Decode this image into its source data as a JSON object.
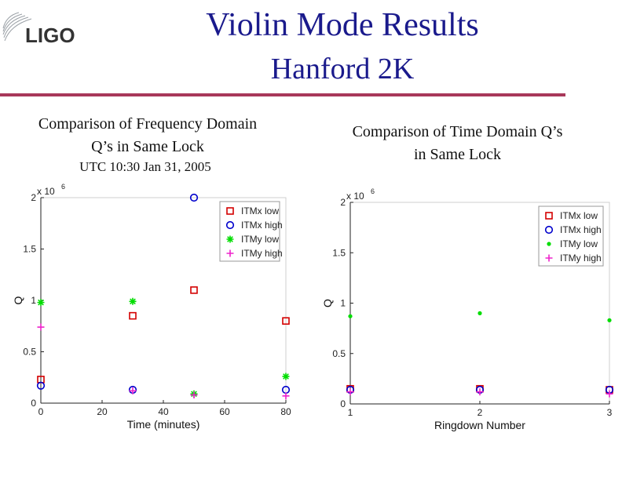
{
  "header": {
    "logo_text": "LIGO",
    "title": "Violin Mode Results",
    "subtitle": "Hanford 2K"
  },
  "captions": {
    "left_line1": "Comparison of Frequency Domain",
    "left_line2": "Q’s in Same Lock",
    "left_utc": "UTC 10:30 Jan 31, 2005",
    "right_line1": "Comparison of Time Domain Q’s",
    "right_line2": "in Same Lock"
  },
  "colors": {
    "title": "#1a1a8c",
    "rule": "#a8385a",
    "red": "#d40000",
    "blue": "#0000cc",
    "green": "#00dd00",
    "magenta": "#ee22cc"
  },
  "chart_data": [
    {
      "type": "scatter",
      "xlabel": "Time (minutes)",
      "ylabel": "Q",
      "y_multiplier": "x 10",
      "y_exponent": "6",
      "xlim": [
        0,
        80
      ],
      "ylim": [
        0,
        2
      ],
      "xticks": [
        "0",
        "20",
        "40",
        "60",
        "80"
      ],
      "yticks": [
        "0",
        "0.5",
        "1",
        "1.5",
        "2"
      ],
      "legend_position": "top-right",
      "series": [
        {
          "name": "ITMx low",
          "marker": "square",
          "color": "#d40000",
          "x": [
            0,
            30,
            50,
            80
          ],
          "y": [
            0.23,
            0.85,
            1.1,
            0.8
          ]
        },
        {
          "name": "ITMx high",
          "marker": "circle",
          "color": "#0000cc",
          "x": [
            0,
            30,
            50,
            80
          ],
          "y": [
            0.17,
            0.13,
            2.0,
            0.13
          ]
        },
        {
          "name": "ITMy low",
          "marker": "asterisk",
          "color": "#00dd00",
          "x": [
            0,
            30,
            50,
            80
          ],
          "y": [
            0.98,
            0.99,
            0.09,
            0.26
          ]
        },
        {
          "name": "ITMy high",
          "marker": "plus",
          "color": "#ee22cc",
          "x": [
            0,
            30,
            50,
            80
          ],
          "y": [
            0.74,
            0.12,
            0.08,
            0.07
          ]
        }
      ]
    },
    {
      "type": "scatter",
      "xlabel": "Ringdown Number",
      "ylabel": "Q",
      "y_multiplier": "x 10",
      "y_exponent": "6",
      "xlim": [
        1,
        3
      ],
      "ylim": [
        0,
        2
      ],
      "xticks": [
        "1",
        "2",
        "3"
      ],
      "yticks": [
        "0",
        "0.5",
        "1",
        "1.5",
        "2"
      ],
      "legend_position": "top-right",
      "series": [
        {
          "name": "ITMx low",
          "marker": "square",
          "color": "#d40000",
          "x": [
            1,
            2,
            3
          ],
          "y": [
            0.15,
            0.15,
            0.14
          ]
        },
        {
          "name": "ITMx high",
          "marker": "circle",
          "color": "#0000cc",
          "x": [
            1,
            2,
            3
          ],
          "y": [
            0.14,
            0.14,
            0.14
          ]
        },
        {
          "name": "ITMy low",
          "marker": "dot",
          "color": "#00dd00",
          "x": [
            1,
            2,
            3
          ],
          "y": [
            0.87,
            0.9,
            0.83
          ]
        },
        {
          "name": "ITMy high",
          "marker": "plus",
          "color": "#ee22cc",
          "x": [
            1,
            2,
            3
          ],
          "y": [
            0.12,
            0.12,
            0.1
          ]
        }
      ]
    }
  ]
}
